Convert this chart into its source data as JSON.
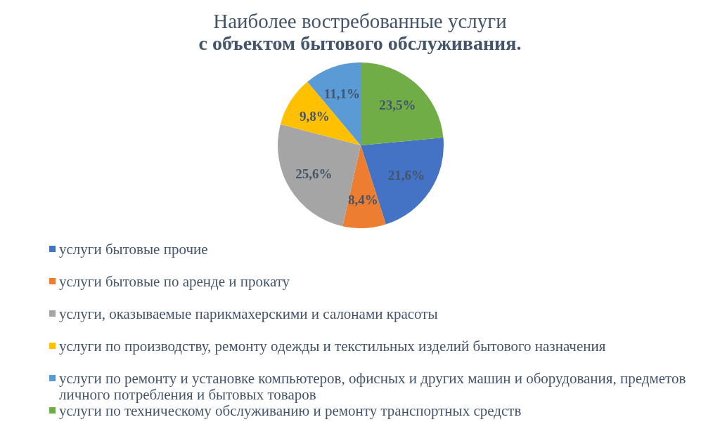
{
  "chart_data": {
    "type": "pie",
    "title": "Наиболее востребованные услуги\nс объектом бытового обслуживания.",
    "categories": [
      "услуги бытовые прочие",
      "услуги бытовые по аренде и прокату",
      "услуги, оказываемые парикмахерскими и салонами красоты",
      "услуги по производству, ремонту одежды и текстильных изделий бытового назначения",
      "услуги по ремонту и установке компьютеров, офисных и других машин и оборудования, предметов личного потребления и бытовых товаров",
      "услуги по техническому обслуживанию и ремонту транспортных средств"
    ],
    "values": [
      21.6,
      8.4,
      25.6,
      9.8,
      11.1,
      23.5
    ],
    "colors": [
      "#4472c4",
      "#ed7d31",
      "#a5a5a5",
      "#ffc000",
      "#5b9bd5",
      "#70ad47"
    ],
    "value_labels": [
      "21,6%",
      "8,4%",
      "25,6%",
      "9,8%",
      "11,1%",
      "23,5%"
    ],
    "legend": "bottom"
  }
}
